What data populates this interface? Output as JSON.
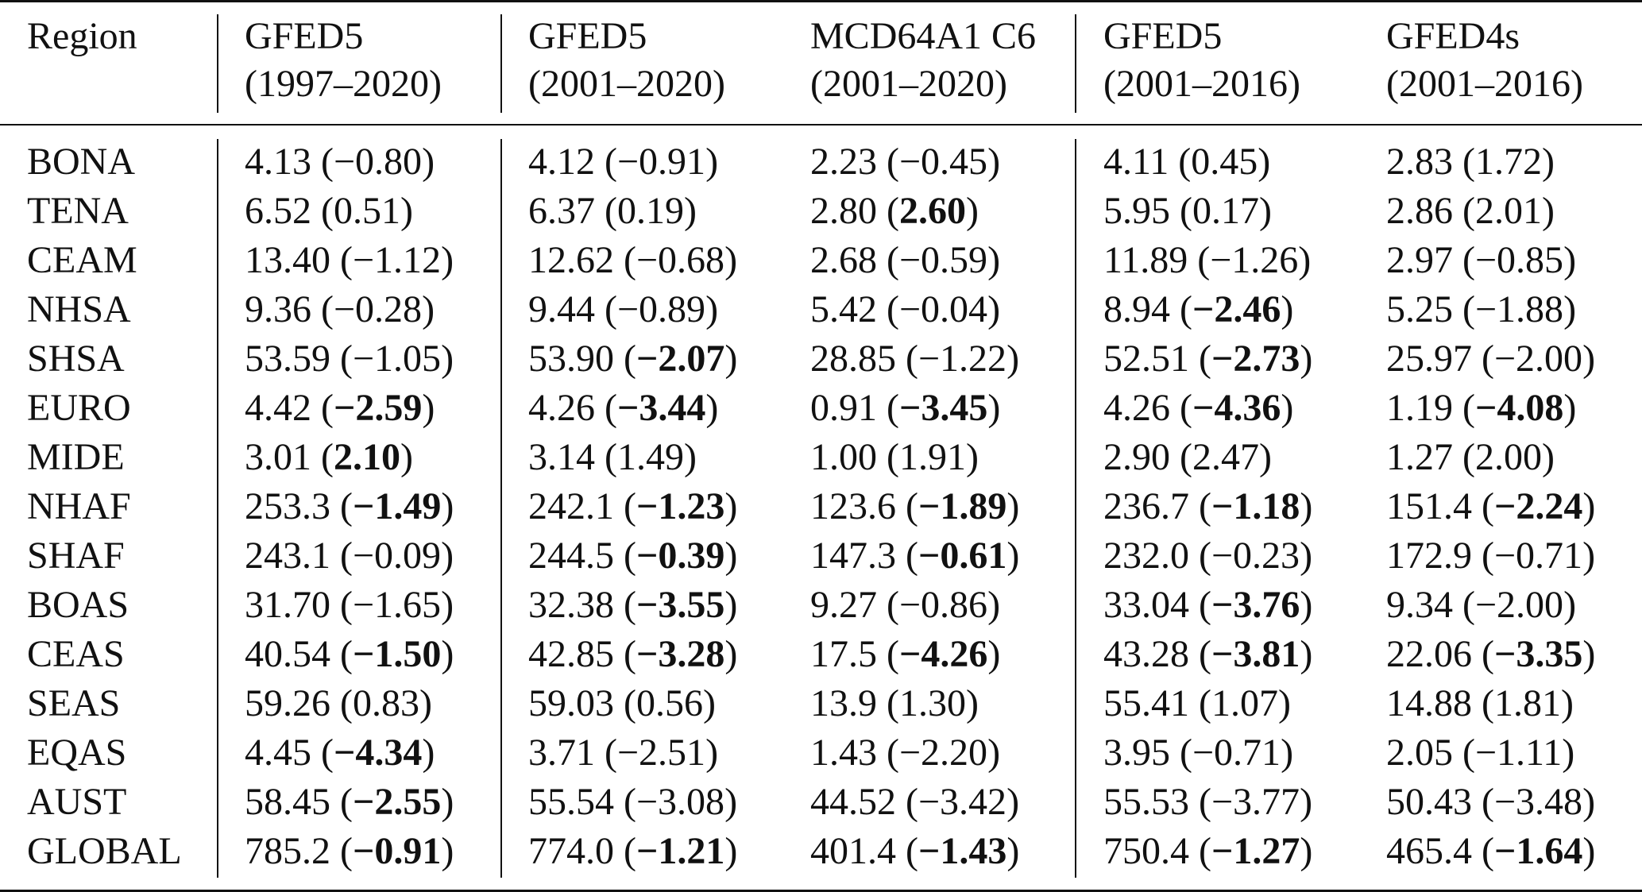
{
  "table": {
    "header_region": "Region",
    "columns": [
      {
        "line1": "GFED5",
        "line2": "(1997–2020)"
      },
      {
        "line1": "GFED5",
        "line2": "(2001–2020)"
      },
      {
        "line1": "MCD64A1 C6",
        "line2": "(2001–2020)"
      },
      {
        "line1": "GFED5",
        "line2": "(2001–2016)"
      },
      {
        "line1": "GFED4s",
        "line2": "(2001–2016)"
      }
    ],
    "rows": [
      {
        "region": "BONA",
        "cells": [
          {
            "value": "4.13",
            "trend": "−0.80",
            "bold": false
          },
          {
            "value": "4.12",
            "trend": "−0.91",
            "bold": false
          },
          {
            "value": "2.23",
            "trend": "−0.45",
            "bold": false
          },
          {
            "value": "4.11",
            "trend": "0.45",
            "bold": false
          },
          {
            "value": "2.83",
            "trend": "1.72",
            "bold": false
          }
        ]
      },
      {
        "region": "TENA",
        "cells": [
          {
            "value": "6.52",
            "trend": "0.51",
            "bold": false
          },
          {
            "value": "6.37",
            "trend": "0.19",
            "bold": false
          },
          {
            "value": "2.80",
            "trend": "2.60",
            "bold": true
          },
          {
            "value": "5.95",
            "trend": "0.17",
            "bold": false
          },
          {
            "value": "2.86",
            "trend": "2.01",
            "bold": false
          }
        ]
      },
      {
        "region": "CEAM",
        "cells": [
          {
            "value": "13.40",
            "trend": "−1.12",
            "bold": false
          },
          {
            "value": "12.62",
            "trend": "−0.68",
            "bold": false
          },
          {
            "value": "2.68",
            "trend": "−0.59",
            "bold": false
          },
          {
            "value": "11.89",
            "trend": "−1.26",
            "bold": false
          },
          {
            "value": "2.97",
            "trend": "−0.85",
            "bold": false
          }
        ]
      },
      {
        "region": "NHSA",
        "cells": [
          {
            "value": "9.36",
            "trend": "−0.28",
            "bold": false
          },
          {
            "value": "9.44",
            "trend": "−0.89",
            "bold": false
          },
          {
            "value": "5.42",
            "trend": "−0.04",
            "bold": false
          },
          {
            "value": "8.94",
            "trend": "−2.46",
            "bold": true
          },
          {
            "value": "5.25",
            "trend": "−1.88",
            "bold": false
          }
        ]
      },
      {
        "region": "SHSA",
        "cells": [
          {
            "value": "53.59",
            "trend": "−1.05",
            "bold": false
          },
          {
            "value": "53.90",
            "trend": "−2.07",
            "bold": true
          },
          {
            "value": "28.85",
            "trend": "−1.22",
            "bold": false
          },
          {
            "value": "52.51",
            "trend": "−2.73",
            "bold": true
          },
          {
            "value": "25.97",
            "trend": "−2.00",
            "bold": false
          }
        ]
      },
      {
        "region": "EURO",
        "cells": [
          {
            "value": "4.42",
            "trend": "−2.59",
            "bold": true
          },
          {
            "value": "4.26",
            "trend": "−3.44",
            "bold": true
          },
          {
            "value": "0.91",
            "trend": "−3.45",
            "bold": true
          },
          {
            "value": "4.26",
            "trend": "−4.36",
            "bold": true
          },
          {
            "value": "1.19",
            "trend": "−4.08",
            "bold": true
          }
        ]
      },
      {
        "region": "MIDE",
        "cells": [
          {
            "value": "3.01",
            "trend": "2.10",
            "bold": true
          },
          {
            "value": "3.14",
            "trend": "1.49",
            "bold": false
          },
          {
            "value": "1.00",
            "trend": "1.91",
            "bold": false
          },
          {
            "value": "2.90",
            "trend": "2.47",
            "bold": false
          },
          {
            "value": "1.27",
            "trend": "2.00",
            "bold": false
          }
        ]
      },
      {
        "region": "NHAF",
        "cells": [
          {
            "value": "253.3",
            "trend": "−1.49",
            "bold": true
          },
          {
            "value": "242.1",
            "trend": "−1.23",
            "bold": true
          },
          {
            "value": "123.6",
            "trend": "−1.89",
            "bold": true
          },
          {
            "value": "236.7",
            "trend": "−1.18",
            "bold": true
          },
          {
            "value": "151.4",
            "trend": "−2.24",
            "bold": true
          }
        ]
      },
      {
        "region": "SHAF",
        "cells": [
          {
            "value": "243.1",
            "trend": "−0.09",
            "bold": false
          },
          {
            "value": "244.5",
            "trend": "−0.39",
            "bold": true
          },
          {
            "value": "147.3",
            "trend": "−0.61",
            "bold": true
          },
          {
            "value": "232.0",
            "trend": "−0.23",
            "bold": false
          },
          {
            "value": "172.9",
            "trend": "−0.71",
            "bold": false
          }
        ]
      },
      {
        "region": "BOAS",
        "cells": [
          {
            "value": "31.70",
            "trend": "−1.65",
            "bold": false
          },
          {
            "value": "32.38",
            "trend": "−3.55",
            "bold": true
          },
          {
            "value": "9.27",
            "trend": "−0.86",
            "bold": false
          },
          {
            "value": "33.04",
            "trend": "−3.76",
            "bold": true
          },
          {
            "value": "9.34",
            "trend": "−2.00",
            "bold": false
          }
        ]
      },
      {
        "region": "CEAS",
        "cells": [
          {
            "value": "40.54",
            "trend": "−1.50",
            "bold": true
          },
          {
            "value": "42.85",
            "trend": "−3.28",
            "bold": true
          },
          {
            "value": "17.5",
            "trend": "−4.26",
            "bold": true
          },
          {
            "value": "43.28",
            "trend": "−3.81",
            "bold": true
          },
          {
            "value": "22.06",
            "trend": "−3.35",
            "bold": true
          }
        ]
      },
      {
        "region": "SEAS",
        "cells": [
          {
            "value": "59.26",
            "trend": "0.83",
            "bold": false
          },
          {
            "value": "59.03",
            "trend": "0.56",
            "bold": false
          },
          {
            "value": "13.9",
            "trend": "1.30",
            "bold": false
          },
          {
            "value": "55.41",
            "trend": "1.07",
            "bold": false
          },
          {
            "value": "14.88",
            "trend": "1.81",
            "bold": false
          }
        ]
      },
      {
        "region": "EQAS",
        "cells": [
          {
            "value": "4.45",
            "trend": "−4.34",
            "bold": true
          },
          {
            "value": "3.71",
            "trend": "−2.51",
            "bold": false
          },
          {
            "value": "1.43",
            "trend": "−2.20",
            "bold": false
          },
          {
            "value": "3.95",
            "trend": "−0.71",
            "bold": false
          },
          {
            "value": "2.05",
            "trend": "−1.11",
            "bold": false
          }
        ]
      },
      {
        "region": "AUST",
        "cells": [
          {
            "value": "58.45",
            "trend": "−2.55",
            "bold": true
          },
          {
            "value": "55.54",
            "trend": "−3.08",
            "bold": false
          },
          {
            "value": "44.52",
            "trend": "−3.42",
            "bold": false
          },
          {
            "value": "55.53",
            "trend": "−3.77",
            "bold": false
          },
          {
            "value": "50.43",
            "trend": "−3.48",
            "bold": false
          }
        ]
      },
      {
        "region": "GLOBAL",
        "cells": [
          {
            "value": "785.2",
            "trend": "−0.91",
            "bold": true
          },
          {
            "value": "774.0",
            "trend": "−1.21",
            "bold": true
          },
          {
            "value": "401.4",
            "trend": "−1.43",
            "bold": true
          },
          {
            "value": "750.4",
            "trend": "−1.27",
            "bold": true
          },
          {
            "value": "465.4",
            "trend": "−1.64",
            "bold": true
          }
        ]
      }
    ]
  }
}
